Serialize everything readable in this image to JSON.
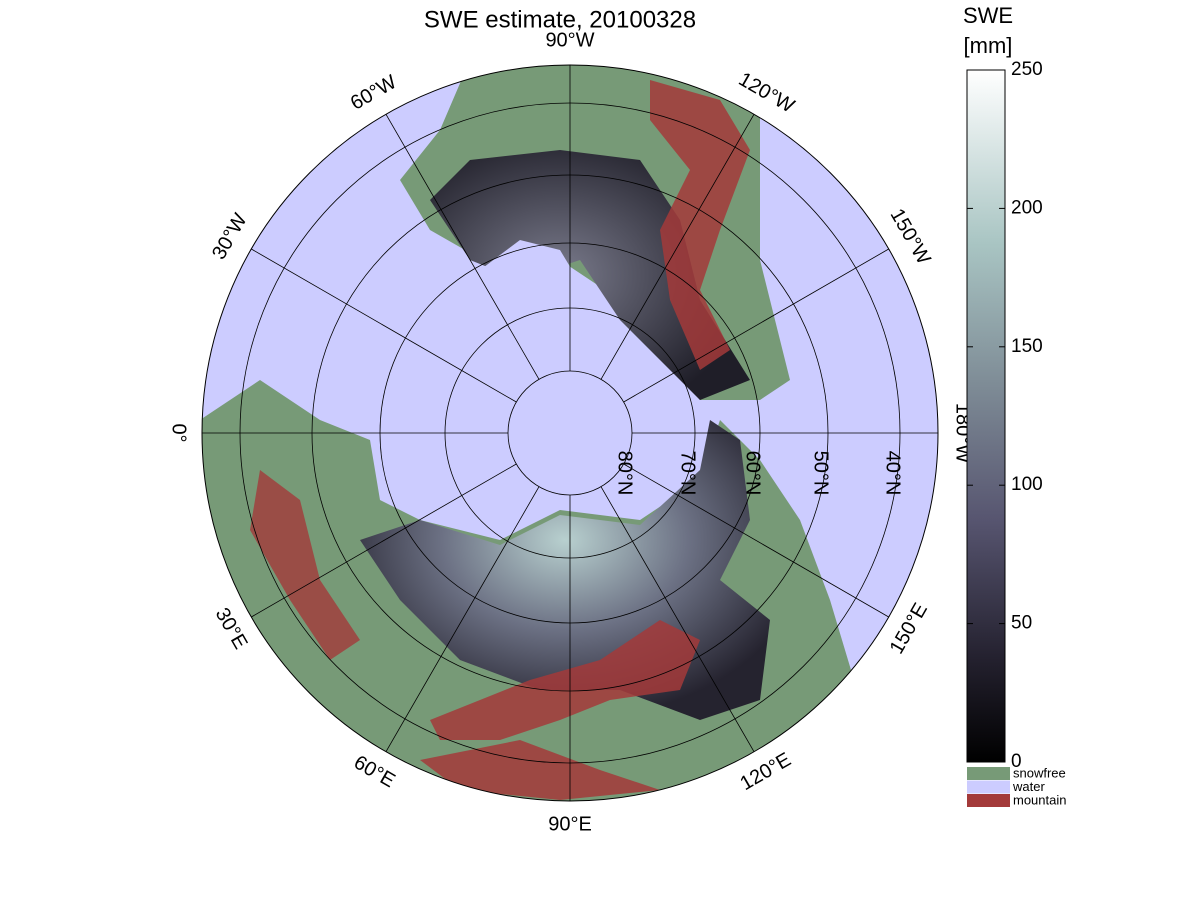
{
  "title": "SWE estimate, 20100328",
  "meridian_labels": [
    "90°W",
    "120°W",
    "150°W",
    "180°W",
    "150°E",
    "120°E",
    "90°E",
    "60°E",
    "30°E",
    "0°",
    "30°W",
    "60°W"
  ],
  "parallel_labels": [
    "80°N",
    "70°N",
    "60°N",
    "50°N",
    "40°N"
  ],
  "colorbar": {
    "title": [
      "SWE",
      "[mm]"
    ],
    "lim": [
      0,
      250
    ],
    "ticks": [
      0,
      50,
      100,
      150,
      200,
      250
    ]
  },
  "legend": [
    {
      "label": "snowfree",
      "color": "#779a77"
    },
    {
      "label": "water",
      "color": "#ccccff"
    },
    {
      "label": "mountain",
      "color": "#a33a3a"
    }
  ]
}
